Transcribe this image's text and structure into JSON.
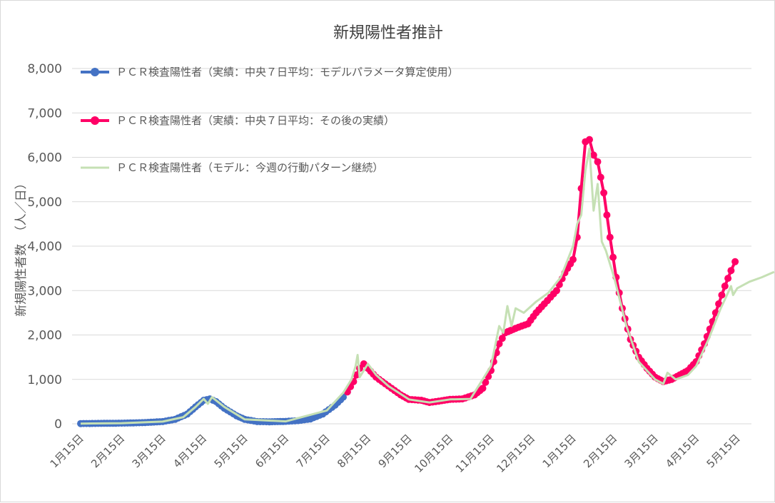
{
  "chart_data": {
    "type": "line",
    "title": "新規陽性者推計",
    "xlabel": "",
    "ylabel": "新規陽性者数　（人／日）",
    "ylim": [
      0,
      8000
    ],
    "yticks": [
      0,
      1000,
      2000,
      3000,
      4000,
      5000,
      6000,
      7000,
      8000
    ],
    "ytick_labels": [
      "0",
      "1,000",
      "2,000",
      "3,000",
      "4,000",
      "5,000",
      "6,000",
      "7,000",
      "8,000"
    ],
    "x_axis": "months since 1月15日",
    "xticks": [
      0,
      1,
      2,
      3,
      4,
      5,
      6,
      7,
      8,
      9,
      10,
      11,
      12,
      13,
      14,
      15,
      16
    ],
    "xtick_labels": [
      "1月15日",
      "2月15日",
      "3月15日",
      "4月15日",
      "5月15日",
      "6月15日",
      "7月15日",
      "8月15日",
      "9月15日",
      "10月15日",
      "11月15日",
      "12月15日",
      "1月15日",
      "2月15日",
      "3月15日",
      "4月15日",
      "5月15日"
    ],
    "grid": true,
    "legend_position": "top-left",
    "series": [
      {
        "name": "ＰＣＲ検査陽性者（実績：中央７日平均：モデルパラメータ算定使用）",
        "color": "#4472c4",
        "style": "line-markers",
        "points": [
          [
            0,
            5
          ],
          [
            0.5,
            10
          ],
          [
            1,
            15
          ],
          [
            1.5,
            25
          ],
          [
            2,
            50
          ],
          [
            2.3,
            100
          ],
          [
            2.6,
            220
          ],
          [
            2.8,
            380
          ],
          [
            3,
            530
          ],
          [
            3.15,
            560
          ],
          [
            3.3,
            500
          ],
          [
            3.5,
            350
          ],
          [
            3.8,
            180
          ],
          [
            4,
            100
          ],
          [
            4.3,
            50
          ],
          [
            4.6,
            45
          ],
          [
            5,
            55
          ],
          [
            5.3,
            70
          ],
          [
            5.6,
            110
          ],
          [
            5.9,
            220
          ],
          [
            6.2,
            420
          ],
          [
            6.4,
            600
          ],
          [
            6.5,
            720
          ]
        ]
      },
      {
        "name": "ＰＣＲ検査陽性者（実績：中央７日平均：その後の実績）",
        "color": "#ff0066",
        "style": "line-markers",
        "points": [
          [
            6.5,
            720
          ],
          [
            6.65,
            950
          ],
          [
            6.8,
            1250
          ],
          [
            6.9,
            1350
          ],
          [
            7,
            1250
          ],
          [
            7.2,
            1050
          ],
          [
            7.5,
            850
          ],
          [
            7.8,
            650
          ],
          [
            8,
            550
          ],
          [
            8.3,
            530
          ],
          [
            8.5,
            480
          ],
          [
            8.8,
            520
          ],
          [
            9,
            550
          ],
          [
            9.3,
            560
          ],
          [
            9.6,
            650
          ],
          [
            9.8,
            800
          ],
          [
            10,
            1200
          ],
          [
            10.2,
            1800
          ],
          [
            10.35,
            2050
          ],
          [
            10.6,
            2150
          ],
          [
            10.9,
            2250
          ],
          [
            11.1,
            2500
          ],
          [
            11.3,
            2700
          ],
          [
            11.6,
            3000
          ],
          [
            11.8,
            3400
          ],
          [
            12,
            3700
          ],
          [
            12.1,
            4200
          ],
          [
            12.2,
            5300
          ],
          [
            12.3,
            6350
          ],
          [
            12.4,
            6400
          ],
          [
            12.5,
            6050
          ],
          [
            12.6,
            5900
          ],
          [
            12.75,
            5200
          ],
          [
            12.9,
            4200
          ],
          [
            13.05,
            3300
          ],
          [
            13.2,
            2600
          ],
          [
            13.4,
            1900
          ],
          [
            13.6,
            1500
          ],
          [
            13.8,
            1250
          ],
          [
            14,
            1050
          ],
          [
            14.2,
            950
          ],
          [
            14.4,
            1000
          ],
          [
            14.6,
            1100
          ],
          [
            14.8,
            1200
          ],
          [
            15,
            1400
          ],
          [
            15.2,
            1800
          ],
          [
            15.4,
            2300
          ],
          [
            15.55,
            2700
          ],
          [
            15.7,
            3100
          ],
          [
            15.85,
            3450
          ],
          [
            15.95,
            3650
          ]
        ]
      },
      {
        "name": "ＰＣＲ検査陽性者（モデル：今週の行動パターン継続）",
        "color": "#c5e0b4",
        "style": "line",
        "points": [
          [
            0,
            5
          ],
          [
            1,
            15
          ],
          [
            2,
            50
          ],
          [
            2.5,
            150
          ],
          [
            2.8,
            380
          ],
          [
            3,
            560
          ],
          [
            3.1,
            450
          ],
          [
            3.2,
            600
          ],
          [
            3.5,
            380
          ],
          [
            4,
            100
          ],
          [
            5,
            55
          ],
          [
            6,
            300
          ],
          [
            6.4,
            700
          ],
          [
            6.6,
            1000
          ],
          [
            6.7,
            1300
          ],
          [
            6.75,
            1550
          ],
          [
            6.8,
            1050
          ],
          [
            7,
            1350
          ],
          [
            7.2,
            1100
          ],
          [
            7.5,
            850
          ],
          [
            8,
            550
          ],
          [
            8.5,
            480
          ],
          [
            9,
            550
          ],
          [
            9.5,
            560
          ],
          [
            10,
            1300
          ],
          [
            10.2,
            2200
          ],
          [
            10.3,
            2050
          ],
          [
            10.4,
            2650
          ],
          [
            10.5,
            2200
          ],
          [
            10.6,
            2600
          ],
          [
            10.8,
            2500
          ],
          [
            11.1,
            2750
          ],
          [
            11.4,
            2950
          ],
          [
            11.7,
            3300
          ],
          [
            12,
            4000
          ],
          [
            12.1,
            4500
          ],
          [
            12.2,
            4700
          ],
          [
            12.3,
            5700
          ],
          [
            12.4,
            6200
          ],
          [
            12.5,
            4800
          ],
          [
            12.6,
            5400
          ],
          [
            12.7,
            4100
          ],
          [
            12.8,
            3900
          ],
          [
            13,
            3300
          ],
          [
            13.3,
            2200
          ],
          [
            13.6,
            1400
          ],
          [
            14,
            1000
          ],
          [
            14.2,
            900
          ],
          [
            14.3,
            1150
          ],
          [
            14.5,
            1000
          ],
          [
            14.8,
            1100
          ],
          [
            15,
            1300
          ],
          [
            15.3,
            1900
          ],
          [
            15.6,
            2600
          ],
          [
            15.7,
            2800
          ],
          [
            15.85,
            3100
          ],
          [
            15.9,
            2900
          ],
          [
            16,
            3050
          ],
          [
            16.3,
            3200
          ],
          [
            16.6,
            3300
          ],
          [
            16.9,
            3420
          ]
        ]
      }
    ]
  }
}
